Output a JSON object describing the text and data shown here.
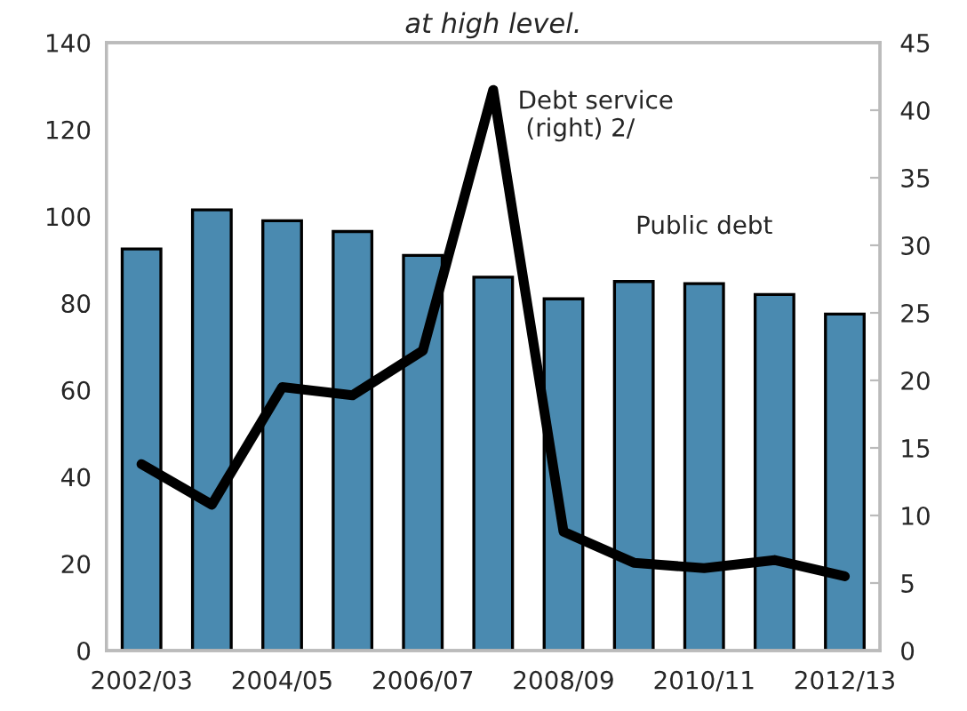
{
  "chart_data": {
    "type": "bar",
    "title": "at high level.",
    "categories": [
      "2002/03",
      null,
      "2004/05",
      null,
      "2006/07",
      null,
      "2008/09",
      null,
      "2010/11",
      null,
      "2012/13"
    ],
    "series": [
      {
        "name": "Public debt",
        "color": "#4a8ab0",
        "values": [
          92.5,
          101.5,
          99,
          96.5,
          91,
          86,
          81,
          85,
          84.5,
          82,
          77.5
        ]
      },
      {
        "name": "Debt service\n (right) 2/",
        "type": "line",
        "axis": "y2",
        "color": "#000000",
        "values": [
          13.8,
          10.8,
          19.5,
          18.9,
          22.2,
          41.5,
          8.8,
          6.5,
          6.1,
          6.7,
          5.5
        ]
      }
    ],
    "ylim": [
      0,
      140
    ],
    "yticks": [
      0,
      20,
      40,
      60,
      80,
      100,
      120,
      140
    ],
    "y2lim": [
      0,
      45
    ],
    "y2ticks": [
      0,
      5,
      10,
      15,
      20,
      25,
      30,
      35,
      40,
      45
    ],
    "grid": false,
    "legend": false,
    "marker": "none",
    "line_style": "solid"
  }
}
